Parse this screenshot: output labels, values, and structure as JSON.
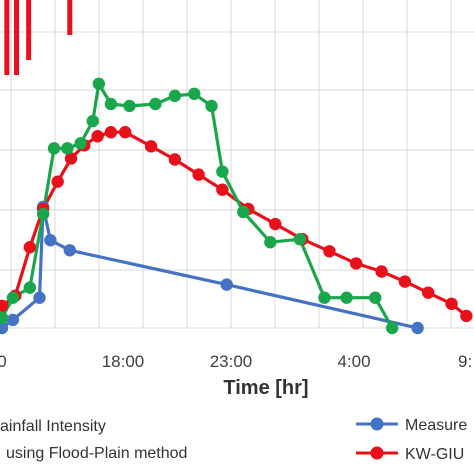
{
  "chart_data": {
    "type": "line",
    "xlabel": "Time [hr]",
    "x_ticks": [
      {
        "label": "0",
        "hours": 8
      },
      {
        "label": "18:00",
        "hours": 18
      },
      {
        "label": "23:00",
        "hours": 23
      },
      {
        "label": "4:00",
        "hours": 28
      },
      {
        "label": "9:",
        "hours": 33
      }
    ],
    "x_range_hours": [
      7.5,
      33.6
    ],
    "y_range": [
      0,
      325
    ],
    "grid": true,
    "legend_position": "bottom",
    "colors": {
      "rainfall": "#e8101a",
      "measured": "#4472c4",
      "kw_giuh": "#e8101a",
      "flood_plain": "#1aa64a",
      "grid": "#d9d9d9"
    },
    "series": [
      {
        "key": "rainfall",
        "name": "ainfall Intensity",
        "style": "bars",
        "x_hours": [
          8.4,
          9.2,
          10.2,
          13.6
        ],
        "values": [
          75,
          75,
          60,
          35
        ]
      },
      {
        "key": "measured",
        "name": "Measure",
        "style": "line-markers",
        "x_hours": [
          8.0,
          8.9,
          11.1,
          11.4,
          12.0,
          13.6,
          22.8,
          31.0
        ],
        "values": [
          0,
          8,
          30,
          120,
          87,
          77,
          43,
          0
        ]
      },
      {
        "key": "kw_giuh",
        "name": "KW-GIU",
        "style": "line-markers",
        "x_hours": [
          8.0,
          9.1,
          10.3,
          11.4,
          12.6,
          13.7,
          14.8,
          15.9,
          17.0,
          18.1,
          19.3,
          20.4,
          21.5,
          22.6,
          23.7,
          24.8,
          25.9,
          27.0,
          28.1,
          29.3,
          30.4,
          31.5,
          32.6,
          33.3
        ],
        "values": [
          22,
          32,
          80,
          118,
          145,
          168,
          181,
          190,
          194,
          194,
          180,
          167,
          152,
          137,
          118,
          103,
          88,
          76,
          64,
          56,
          46,
          35,
          24,
          12
        ]
      },
      {
        "key": "flood_plain",
        "name": "using Flood-Plain method",
        "style": "line-markers",
        "x_hours": [
          8.0,
          8.9,
          10.3,
          11.4,
          12.3,
          13.4,
          14.5,
          15.5,
          16.0,
          17.0,
          18.3,
          19.5,
          20.4,
          21.3,
          22.1,
          22.6,
          23.5,
          24.6,
          25.8,
          26.8,
          27.7,
          29.0,
          29.8
        ],
        "values": [
          10,
          30,
          40,
          113,
          178,
          178,
          183,
          205,
          242,
          222,
          220,
          222,
          230,
          232,
          220,
          155,
          115,
          85,
          88,
          30,
          30,
          30,
          0
        ]
      }
    ]
  }
}
